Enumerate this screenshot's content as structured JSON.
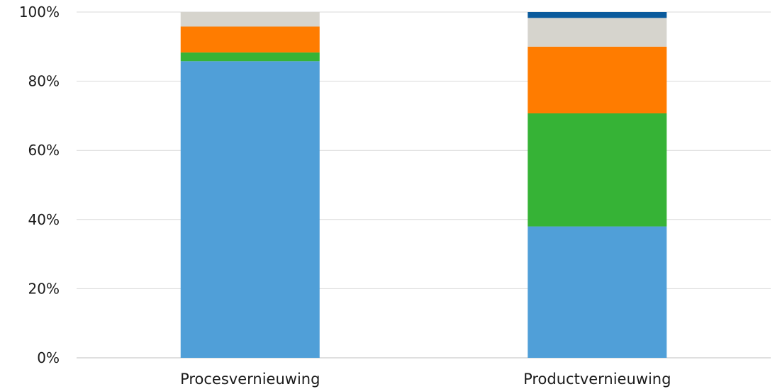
{
  "chart_data": {
    "type": "bar",
    "stacked": true,
    "categories": [
      "Procesvernieuwing",
      "Productvernieuwing"
    ],
    "series": [
      {
        "color": "#509fd8",
        "values": [
          85.8,
          38.0
        ]
      },
      {
        "color": "#36b336",
        "values": [
          2.5,
          32.7
        ]
      },
      {
        "color": "#ff7c00",
        "values": [
          7.5,
          19.3
        ]
      },
      {
        "color": "#d6d4cd",
        "values": [
          4.2,
          8.3
        ]
      },
      {
        "color": "#0a5a9c",
        "values": [
          0.0,
          1.7
        ]
      }
    ],
    "ylim": [
      0,
      100
    ],
    "yticks": [
      0,
      20,
      40,
      60,
      80,
      100
    ],
    "ytick_labels": [
      "0%",
      "20%",
      "40%",
      "60%",
      "80%",
      "100%"
    ],
    "grid": true,
    "legend": "none"
  }
}
